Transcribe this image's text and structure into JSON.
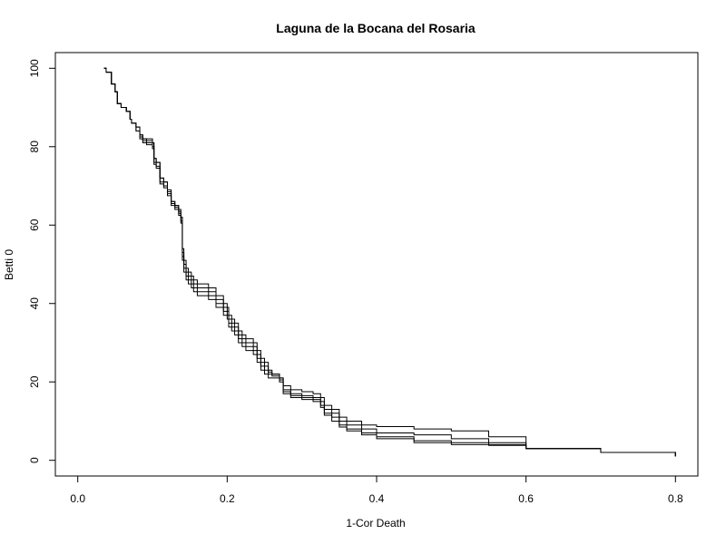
{
  "chart_data": {
    "type": "line",
    "title": "Laguna de la Bocana del Rosaria",
    "xlabel": "1-Cor Death",
    "ylabel": "Betti 0",
    "xlim": [
      -0.03,
      0.83
    ],
    "ylim": [
      -4,
      104
    ],
    "xticks": [
      0.0,
      0.2,
      0.4,
      0.6,
      0.8
    ],
    "xtick_labels": [
      "0.0",
      "0.2",
      "0.4",
      "0.6",
      "0.8"
    ],
    "yticks": [
      0,
      20,
      40,
      60,
      80,
      100
    ],
    "ytick_labels": [
      "0",
      "20",
      "40",
      "60",
      "80",
      "100"
    ],
    "grid": false,
    "legend": "none",
    "line_color": "#000000",
    "series": [
      {
        "x": [
          0.035,
          0.038,
          0.045,
          0.05,
          0.053,
          0.058,
          0.065,
          0.07,
          0.072,
          0.078,
          0.083,
          0.087,
          0.092,
          0.1,
          0.102,
          0.105,
          0.11,
          0.115,
          0.12,
          0.125,
          0.13,
          0.135,
          0.138,
          0.14,
          0.142,
          0.145,
          0.148,
          0.152,
          0.155,
          0.16,
          0.175,
          0.185,
          0.195,
          0.2,
          0.202,
          0.206,
          0.21,
          0.215,
          0.22,
          0.225,
          0.235,
          0.24,
          0.245,
          0.25,
          0.255,
          0.26,
          0.27,
          0.275,
          0.285,
          0.3,
          0.315,
          0.325,
          0.33,
          0.34,
          0.35,
          0.36,
          0.38,
          0.4,
          0.45,
          0.5,
          0.55,
          0.6,
          0.7,
          0.8
        ],
        "y": [
          100,
          99,
          96,
          94,
          91,
          90,
          89,
          87,
          86,
          85,
          83,
          82,
          82,
          81,
          77,
          76,
          72,
          71,
          69,
          66,
          65,
          64,
          62,
          54,
          51,
          49,
          48,
          47,
          46,
          45,
          44,
          42,
          40,
          39,
          37,
          36,
          35,
          33,
          32,
          31,
          30,
          28,
          26,
          25,
          23,
          22,
          21,
          19,
          18,
          17.5,
          17,
          16,
          14,
          13,
          11,
          10,
          9,
          8.6,
          8,
          7.5,
          6,
          3,
          2,
          1
        ]
      },
      {
        "x": [
          0.035,
          0.038,
          0.045,
          0.05,
          0.053,
          0.058,
          0.065,
          0.07,
          0.072,
          0.078,
          0.083,
          0.087,
          0.092,
          0.1,
          0.102,
          0.105,
          0.11,
          0.115,
          0.12,
          0.125,
          0.13,
          0.135,
          0.138,
          0.14,
          0.142,
          0.145,
          0.148,
          0.152,
          0.155,
          0.16,
          0.175,
          0.185,
          0.195,
          0.2,
          0.202,
          0.206,
          0.21,
          0.215,
          0.22,
          0.225,
          0.235,
          0.24,
          0.245,
          0.25,
          0.255,
          0.26,
          0.27,
          0.275,
          0.285,
          0.3,
          0.315,
          0.325,
          0.33,
          0.34,
          0.35,
          0.36,
          0.38,
          0.4,
          0.45,
          0.5,
          0.55,
          0.6,
          0.7,
          0.8
        ],
        "y": [
          100,
          99,
          96,
          94,
          91,
          90,
          89,
          87,
          86,
          85,
          83,
          82,
          81.5,
          81,
          77,
          76,
          72,
          71,
          68.5,
          66,
          65,
          63.5,
          62,
          53,
          50,
          48,
          47,
          46,
          45,
          44,
          43,
          41,
          39,
          38,
          36,
          35,
          34,
          32,
          31,
          30,
          29,
          27,
          25,
          24,
          22.5,
          22,
          21,
          18,
          17,
          16.5,
          16,
          15,
          13,
          12,
          10,
          9,
          8,
          7,
          6.5,
          5.5,
          4.5,
          3,
          2,
          1
        ]
      },
      {
        "x": [
          0.035,
          0.038,
          0.045,
          0.05,
          0.053,
          0.058,
          0.065,
          0.07,
          0.072,
          0.078,
          0.083,
          0.087,
          0.092,
          0.1,
          0.102,
          0.105,
          0.11,
          0.115,
          0.12,
          0.125,
          0.13,
          0.135,
          0.138,
          0.14,
          0.142,
          0.145,
          0.148,
          0.152,
          0.155,
          0.16,
          0.175,
          0.185,
          0.195,
          0.2,
          0.202,
          0.206,
          0.21,
          0.215,
          0.22,
          0.225,
          0.235,
          0.24,
          0.245,
          0.25,
          0.255,
          0.26,
          0.27,
          0.275,
          0.285,
          0.3,
          0.315,
          0.325,
          0.33,
          0.34,
          0.35,
          0.36,
          0.38,
          0.4,
          0.45,
          0.5,
          0.55,
          0.6,
          0.7,
          0.8
        ],
        "y": [
          100,
          99,
          96,
          94,
          91,
          90,
          89,
          87,
          86,
          84,
          82.5,
          81.5,
          81,
          80,
          76,
          75,
          71,
          70,
          68,
          65.5,
          64.5,
          63,
          61,
          52,
          49,
          47,
          46,
          45,
          44,
          43,
          42,
          40,
          38,
          37,
          35,
          34,
          33,
          31,
          30,
          29,
          28,
          26,
          24,
          23,
          22,
          21.5,
          20.5,
          17.5,
          16.5,
          16,
          15.5,
          14,
          12,
          11,
          9,
          8,
          7,
          6,
          5,
          4.5,
          4,
          3,
          2,
          1
        ]
      },
      {
        "x": [
          0.035,
          0.038,
          0.045,
          0.05,
          0.053,
          0.058,
          0.065,
          0.07,
          0.072,
          0.078,
          0.083,
          0.087,
          0.092,
          0.1,
          0.102,
          0.105,
          0.11,
          0.115,
          0.12,
          0.125,
          0.13,
          0.135,
          0.138,
          0.14,
          0.142,
          0.145,
          0.148,
          0.152,
          0.155,
          0.16,
          0.175,
          0.185,
          0.195,
          0.2,
          0.202,
          0.206,
          0.21,
          0.215,
          0.22,
          0.225,
          0.235,
          0.24,
          0.245,
          0.25,
          0.255,
          0.26,
          0.27,
          0.275,
          0.285,
          0.3,
          0.315,
          0.325,
          0.33,
          0.34,
          0.35,
          0.36,
          0.38,
          0.4,
          0.45,
          0.5,
          0.55,
          0.6,
          0.7,
          0.8
        ],
        "y": [
          100,
          99,
          96,
          94,
          91,
          90,
          89,
          87,
          86,
          84,
          82,
          81,
          80.5,
          79.5,
          75.5,
          74.5,
          70.5,
          69.5,
          67.5,
          65,
          64,
          62.5,
          60.5,
          51,
          48,
          46,
          45,
          44,
          43,
          42,
          41,
          39,
          37,
          36,
          34,
          33,
          32,
          30,
          29,
          28,
          27,
          25,
          23,
          22,
          21,
          21,
          20,
          17,
          16,
          15.5,
          15,
          13.5,
          11.5,
          10,
          8.5,
          7.5,
          6.5,
          5.5,
          4.5,
          4,
          3.8,
          3,
          2,
          1
        ]
      }
    ]
  }
}
